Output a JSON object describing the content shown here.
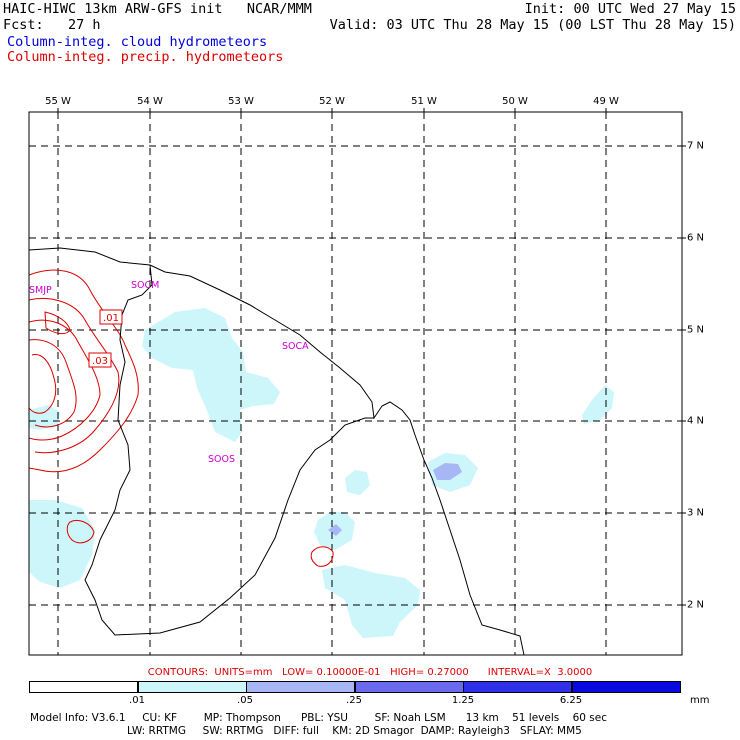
{
  "header": {
    "model_line": "HAIC-HIWC 13km ARW-GFS init   NCAR/MMM",
    "init_line": "Init: 00 UTC Wed 27 May 15",
    "fcst_line": "Fcst:   27 h",
    "valid_line": "Valid: 03 UTC Thu 28 May 15 (00 LST Thu 28 May 15)",
    "field1": "Column-integ. cloud hydrometeors",
    "field2": "Column-integ. precip. hydrometeors"
  },
  "map": {
    "lon_labels": [
      "55 W",
      "54 W",
      "53 W",
      "52 W",
      "51 W",
      "50 W",
      "49 W"
    ],
    "lat_labels": [
      "7 N",
      "6 N",
      "5 N",
      "4 N",
      "3 N",
      "2 N"
    ],
    "stations": [
      "SMJP",
      "SOCM",
      "SOCA",
      "SOOS"
    ],
    "contour_labels": [
      ".01",
      ".03"
    ]
  },
  "contours_info": "CONTOURS:  UNITS=mm   LOW= 0.10000E-01   HIGH= 0.27000      INTERVAL=X  3.0000",
  "colorbar": {
    "labels": [
      ".01",
      ".05",
      ".25",
      "1.25",
      "6.25"
    ],
    "unit": "mm",
    "colors": [
      "#ffffff",
      "#cdf6fb",
      "#a7b6f5",
      "#6a6af0",
      "#3030e8",
      "#0a0ae0"
    ]
  },
  "model_info": {
    "line1": "Model Info: V3.6.1     CU: KF        MP: Thompson      PBL: YSU        SF: Noah LSM      13 km    51 levels    60 sec",
    "line2": "LW: RRTMG     SW: RRTMG   DIFF: full    KM: 2D Smagor  DAMP: Rayleigh3   SFLAY: MM5"
  },
  "colors": {
    "coast": "#000000",
    "grid": "#000000",
    "cloud_fill": "#cdf6fb",
    "cloud_fill_2": "#a7b6f5",
    "precip_contour": "#dd0000",
    "station": "#cc00cc",
    "header_cloud": "#0000dd",
    "header_precip": "#dd0000"
  }
}
